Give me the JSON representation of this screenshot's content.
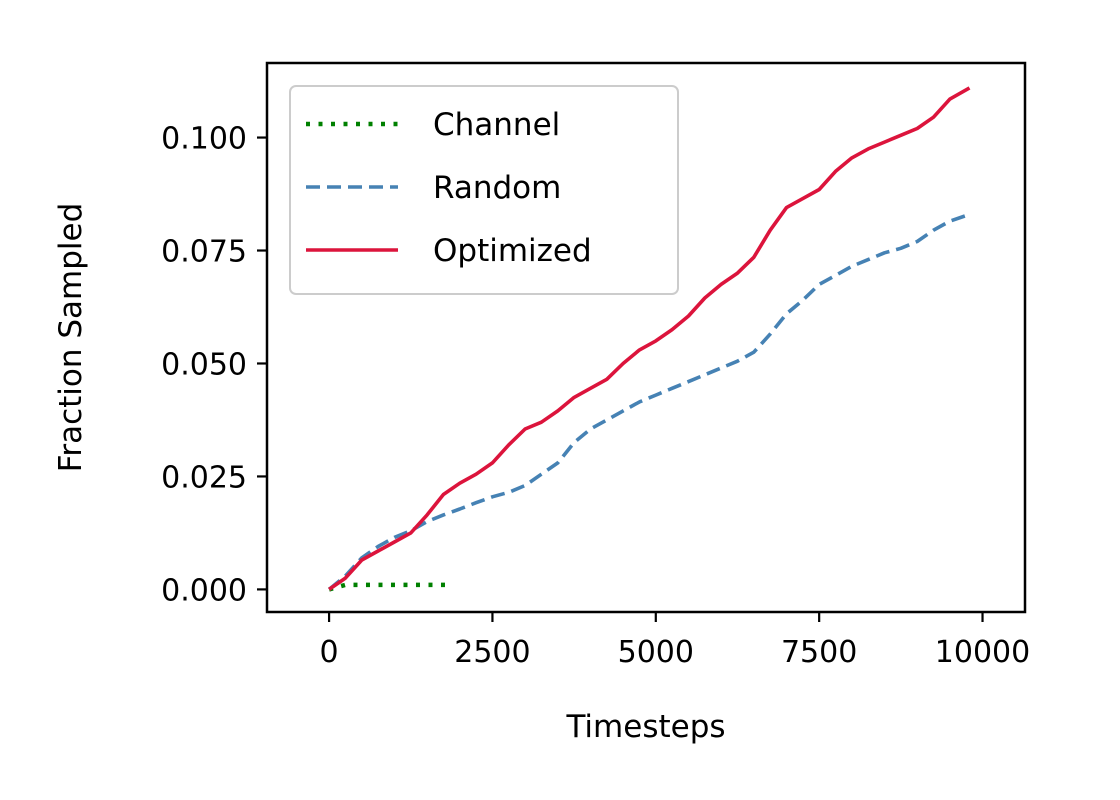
{
  "chart_data": {
    "type": "line",
    "title": "",
    "xlabel": "Timesteps",
    "ylabel": "Fraction Sampled",
    "xlim": [
      -950,
      10650
    ],
    "ylim": [
      -0.005,
      0.1165
    ],
    "grid": false,
    "legend_position": "top-left",
    "x_ticks": [
      0,
      2500,
      5000,
      7500,
      10000
    ],
    "x_tick_labels": [
      "0",
      "2500",
      "5000",
      "7500",
      "10000"
    ],
    "y_ticks": [
      0.0,
      0.025,
      0.05,
      0.075,
      0.1
    ],
    "y_tick_labels": [
      "0.000",
      "0.025",
      "0.050",
      "0.075",
      "0.100"
    ],
    "series": [
      {
        "name": "Channel",
        "color": "#008000",
        "style": "dotted",
        "x": [
          0,
          250,
          500,
          750,
          1000,
          1250,
          1500,
          1750,
          1900
        ],
        "y": [
          0.0,
          0.001,
          0.001,
          0.001,
          0.001,
          0.001,
          0.001,
          0.001,
          0.001
        ]
      },
      {
        "name": "Random",
        "color": "#4682B4",
        "style": "dashed",
        "x": [
          0,
          250,
          500,
          750,
          1000,
          1250,
          1500,
          1750,
          2000,
          2250,
          2500,
          2750,
          3000,
          3250,
          3500,
          3750,
          4000,
          4250,
          4500,
          4750,
          5000,
          5250,
          5500,
          5750,
          6000,
          6250,
          6500,
          6750,
          7000,
          7250,
          7500,
          7750,
          8000,
          8250,
          8500,
          8750,
          9000,
          9250,
          9500,
          9800
        ],
        "y": [
          0.0,
          0.003,
          0.007,
          0.0095,
          0.0115,
          0.013,
          0.015,
          0.0165,
          0.0178,
          0.0192,
          0.0205,
          0.0215,
          0.023,
          0.0255,
          0.028,
          0.0325,
          0.0355,
          0.0375,
          0.0395,
          0.0415,
          0.043,
          0.0445,
          0.046,
          0.0475,
          0.049,
          0.0505,
          0.0525,
          0.0565,
          0.061,
          0.064,
          0.0675,
          0.0695,
          0.0715,
          0.073,
          0.0745,
          0.0755,
          0.077,
          0.0795,
          0.0815,
          0.083
        ]
      },
      {
        "name": "Optimized",
        "color": "#DC143C",
        "style": "solid",
        "x": [
          0,
          250,
          500,
          750,
          1000,
          1250,
          1500,
          1750,
          2000,
          2250,
          2500,
          2750,
          3000,
          3250,
          3500,
          3750,
          4000,
          4250,
          4500,
          4750,
          5000,
          5250,
          5500,
          5750,
          6000,
          6250,
          6500,
          6750,
          7000,
          7250,
          7500,
          7750,
          8000,
          8250,
          8500,
          8750,
          9000,
          9250,
          9500,
          9800
        ],
        "y": [
          0.0,
          0.0025,
          0.0065,
          0.0085,
          0.0105,
          0.0125,
          0.0165,
          0.021,
          0.0235,
          0.0255,
          0.028,
          0.032,
          0.0355,
          0.037,
          0.0395,
          0.0425,
          0.0445,
          0.0465,
          0.05,
          0.053,
          0.055,
          0.0575,
          0.0605,
          0.0645,
          0.0675,
          0.07,
          0.0735,
          0.0795,
          0.0845,
          0.0865,
          0.0885,
          0.0925,
          0.0955,
          0.0975,
          0.099,
          0.1005,
          0.102,
          0.1045,
          0.1085,
          0.111
        ]
      }
    ]
  }
}
